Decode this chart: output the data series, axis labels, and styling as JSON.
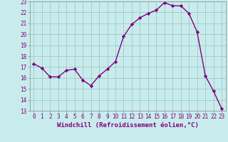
{
  "x": [
    0,
    1,
    2,
    3,
    4,
    5,
    6,
    7,
    8,
    9,
    10,
    11,
    12,
    13,
    14,
    15,
    16,
    17,
    18,
    19,
    20,
    21,
    22,
    23
  ],
  "y": [
    17.3,
    16.9,
    16.1,
    16.1,
    16.7,
    16.8,
    15.8,
    15.3,
    16.2,
    16.8,
    17.5,
    19.8,
    20.9,
    21.5,
    21.9,
    22.2,
    22.9,
    22.6,
    22.6,
    21.9,
    20.2,
    16.2,
    14.8,
    13.2
  ],
  "line_color": "#800080",
  "marker": "D",
  "marker_size": 2.2,
  "bg_color": "#c8ecec",
  "grid_color": "#a0c8c8",
  "xlabel": "Windchill (Refroidissement éolien,°C)",
  "xlabel_color": "#800080",
  "tick_color": "#800080",
  "ylim": [
    13,
    23
  ],
  "xlim": [
    -0.5,
    23.5
  ],
  "yticks": [
    13,
    14,
    15,
    16,
    17,
    18,
    19,
    20,
    21,
    22,
    23
  ],
  "xticks": [
    0,
    1,
    2,
    3,
    4,
    5,
    6,
    7,
    8,
    9,
    10,
    11,
    12,
    13,
    14,
    15,
    16,
    17,
    18,
    19,
    20,
    21,
    22,
    23
  ],
  "tick_fontsize": 5.5,
  "xlabel_fontsize": 6.5,
  "line_width": 1.0
}
